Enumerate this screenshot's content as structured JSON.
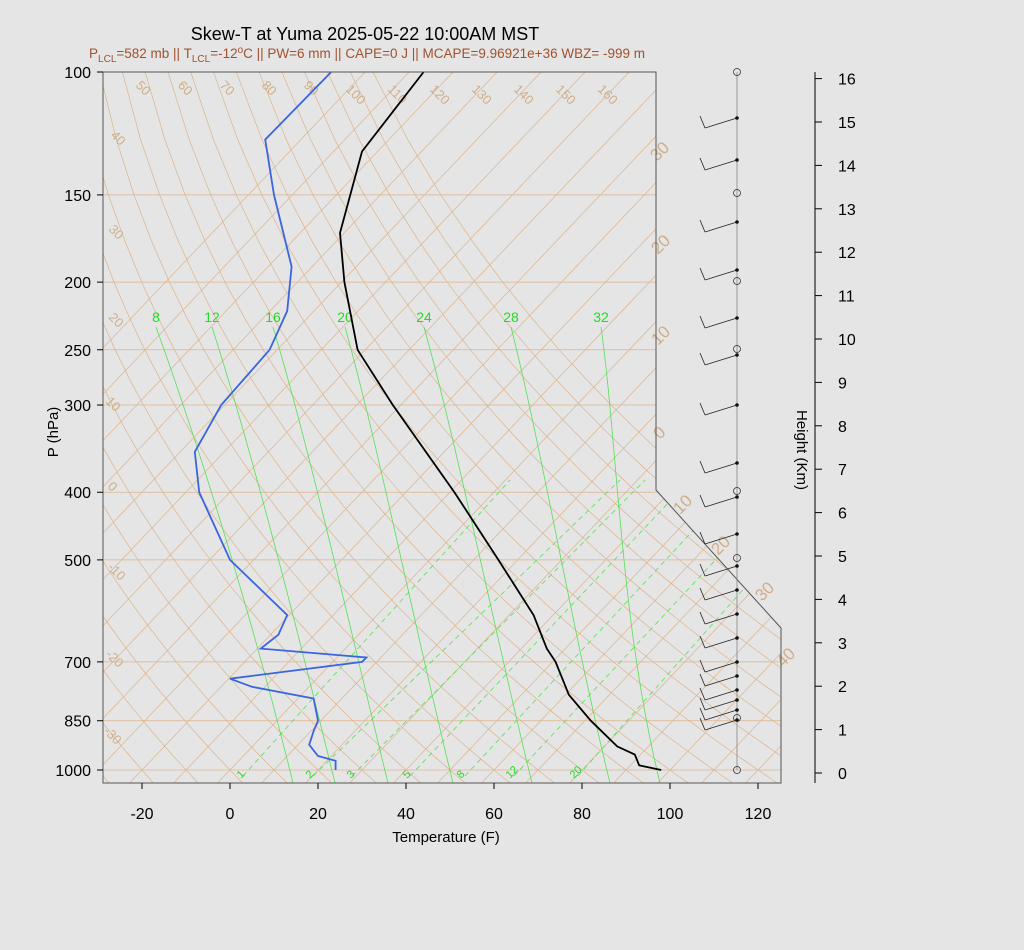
{
  "title": "Skew-T at Yuma 2025-05-22 10:00AM MST",
  "subtitle_parts": [
    "P",
    "LCL",
    "=582 mb || T",
    "LCL",
    "=-12",
    "o",
    "C || PW=6 mm || CAPE=0 J || MCAPE=9.96921e+36 WBZ= -999 m"
  ],
  "colors": {
    "temperature": "#000000",
    "dewpoint": "#3a64e0",
    "isotherm": "#dcb48c",
    "dry_adiabat": "#dcb48c",
    "moist_adiabat": "#55e055",
    "mixing_ratio": "#55e055",
    "subtitle": "#a0522d",
    "background": "#e5e5e5"
  },
  "chart_data": {
    "type": "skew-t",
    "title": "Skew-T at Yuma 2025-05-22 10:00AM MST",
    "xlabel": "Temperature (F)",
    "ylabel": "P (hPa)",
    "y2label": "Height (Km)",
    "x_ticks": [
      -20,
      0,
      20,
      40,
      60,
      80,
      100,
      120
    ],
    "p_ticks": [
      100,
      150,
      200,
      250,
      300,
      400,
      500,
      700,
      850,
      1000
    ],
    "height_ticks": [
      0,
      1,
      2,
      3,
      4,
      5,
      6,
      7,
      8,
      9,
      10,
      11,
      12,
      13,
      14,
      15,
      16
    ],
    "isotherm_labels_left": [
      50,
      60,
      70,
      80,
      90,
      100,
      110,
      120,
      130,
      140,
      150,
      160,
      40,
      30,
      20,
      10,
      0,
      -10,
      -20,
      -30
    ],
    "isotherm_labels_right": [
      30,
      20,
      10,
      0,
      10,
      20,
      30,
      40
    ],
    "moist_adiabat_labels": [
      8,
      12,
      16,
      20,
      24,
      28,
      32
    ],
    "mixing_ratio_labels": [
      1,
      2,
      3,
      5,
      8,
      12,
      20
    ],
    "temperature_profile": [
      {
        "p": 1000,
        "t": 98
      },
      {
        "p": 985,
        "t": 93
      },
      {
        "p": 950,
        "t": 92
      },
      {
        "p": 925,
        "t": 88
      },
      {
        "p": 850,
        "t": 82
      },
      {
        "p": 780,
        "t": 77
      },
      {
        "p": 700,
        "t": 74
      },
      {
        "p": 670,
        "t": 72
      },
      {
        "p": 600,
        "t": 69
      },
      {
        "p": 500,
        "t": 61
      },
      {
        "p": 400,
        "t": 51
      },
      {
        "p": 300,
        "t": 37
      },
      {
        "p": 250,
        "t": 29
      },
      {
        "p": 200,
        "t": 26
      },
      {
        "p": 170,
        "t": 25
      },
      {
        "p": 130,
        "t": 30
      },
      {
        "p": 100,
        "t": 44
      }
    ],
    "dewpoint_profile": [
      {
        "p": 1000,
        "t": 24
      },
      {
        "p": 970,
        "t": 24
      },
      {
        "p": 955,
        "t": 20
      },
      {
        "p": 920,
        "t": 18
      },
      {
        "p": 880,
        "t": 19
      },
      {
        "p": 850,
        "t": 20
      },
      {
        "p": 790,
        "t": 19
      },
      {
        "p": 760,
        "t": 5
      },
      {
        "p": 740,
        "t": 0
      },
      {
        "p": 700,
        "t": 30
      },
      {
        "p": 690,
        "t": 31
      },
      {
        "p": 670,
        "t": 7
      },
      {
        "p": 640,
        "t": 11
      },
      {
        "p": 600,
        "t": 13
      },
      {
        "p": 500,
        "t": 0
      },
      {
        "p": 400,
        "t": -7
      },
      {
        "p": 350,
        "t": -8
      },
      {
        "p": 300,
        "t": -2
      },
      {
        "p": 250,
        "t": 9
      },
      {
        "p": 220,
        "t": 13
      },
      {
        "p": 190,
        "t": 14
      },
      {
        "p": 150,
        "t": 10
      },
      {
        "p": 125,
        "t": 8
      },
      {
        "p": 100,
        "t": 23
      }
    ]
  }
}
